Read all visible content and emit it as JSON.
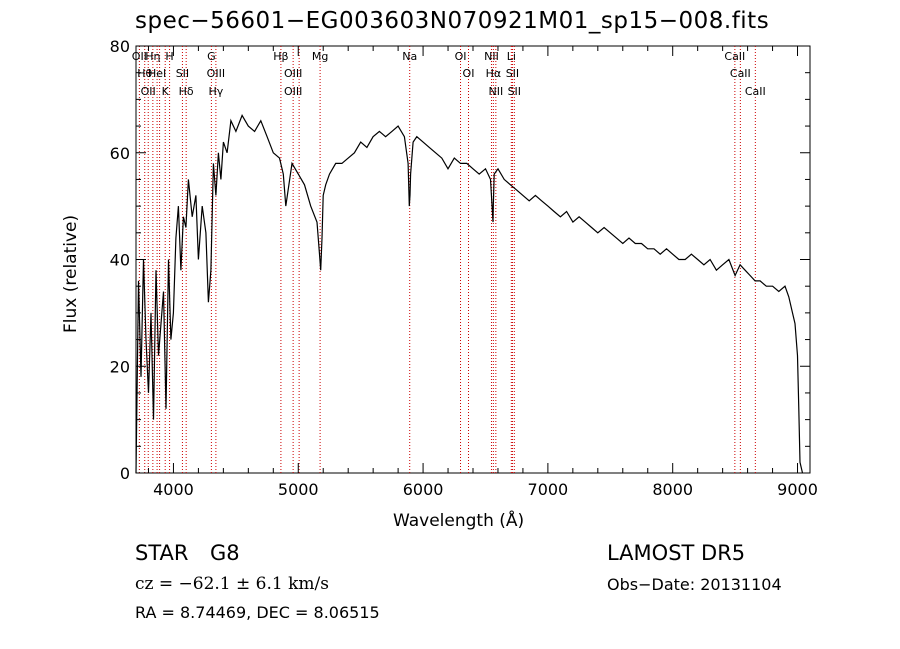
{
  "chart_data": {
    "type": "line",
    "title": "spec−56601−EG003603N070921M01_sp15−008.fits",
    "xlabel": "Wavelength (Å)",
    "ylabel": "Flux (relative)",
    "xlim": [
      3700,
      9100
    ],
    "ylim": [
      0,
      80
    ],
    "xticks": [
      4000,
      5000,
      6000,
      7000,
      8000,
      9000
    ],
    "yticks": [
      0,
      20,
      40,
      60,
      80
    ],
    "grid": false,
    "series": [
      {
        "x": [
          3700,
          3720,
          3740,
          3760,
          3780,
          3800,
          3820,
          3840,
          3860,
          3880,
          3900,
          3920,
          3940,
          3960,
          3980,
          4000,
          4020,
          4040,
          4060,
          4080,
          4100,
          4120,
          4150,
          4180,
          4200,
          4230,
          4260,
          4280,
          4300,
          4320,
          4340,
          4360,
          4380,
          4400,
          4430,
          4460,
          4500,
          4550,
          4600,
          4650,
          4700,
          4750,
          4800,
          4850,
          4880,
          4900,
          4950,
          5000,
          5050,
          5100,
          5150,
          5170,
          5180,
          5190,
          5200,
          5220,
          5250,
          5300,
          5350,
          5400,
          5450,
          5500,
          5550,
          5600,
          5650,
          5700,
          5750,
          5800,
          5850,
          5880,
          5890,
          5895,
          5900,
          5920,
          5950,
          6000,
          6050,
          6100,
          6150,
          6200,
          6250,
          6300,
          6350,
          6400,
          6450,
          6500,
          6540,
          6560,
          6563,
          6570,
          6600,
          6650,
          6700,
          6750,
          6800,
          6850,
          6900,
          6950,
          7000,
          7050,
          7100,
          7150,
          7200,
          7250,
          7300,
          7350,
          7400,
          7450,
          7500,
          7550,
          7600,
          7650,
          7700,
          7750,
          7800,
          7850,
          7900,
          7950,
          8000,
          8050,
          8100,
          8150,
          8200,
          8250,
          8300,
          8350,
          8400,
          8450,
          8500,
          8540,
          8580,
          8620,
          8660,
          8700,
          8750,
          8800,
          8850,
          8900,
          8930,
          8960,
          8980,
          9000,
          9010,
          9020,
          9040
        ],
        "y": [
          0,
          36,
          18,
          40,
          25,
          15,
          30,
          10,
          38,
          22,
          28,
          34,
          12,
          40,
          25,
          30,
          44,
          50,
          38,
          48,
          46,
          55,
          48,
          52,
          40,
          50,
          45,
          32,
          38,
          58,
          52,
          60,
          55,
          62,
          60,
          66,
          64,
          67,
          65,
          64,
          66,
          63,
          60,
          59,
          56,
          50,
          58,
          56,
          54,
          50,
          47,
          41,
          38,
          44,
          52,
          54,
          56,
          58,
          58,
          59,
          60,
          62,
          61,
          63,
          64,
          63,
          64,
          65,
          63,
          58,
          50,
          52,
          56,
          62,
          63,
          62,
          61,
          60,
          59,
          57,
          59,
          58,
          58,
          57,
          56,
          57,
          55,
          47,
          50,
          56,
          57,
          55,
          54,
          53,
          52,
          51,
          52,
          51,
          50,
          49,
          48,
          49,
          47,
          48,
          47,
          46,
          45,
          46,
          45,
          44,
          43,
          44,
          43,
          43,
          42,
          42,
          41,
          42,
          41,
          40,
          40,
          41,
          40,
          39,
          40,
          38,
          39,
          40,
          37,
          39,
          38,
          37,
          36,
          36,
          35,
          35,
          34,
          35,
          33,
          30,
          28,
          22,
          12,
          2,
          0
        ]
      }
    ],
    "lines": [
      {
        "x": 3727,
        "labels": [
          "OII"
        ]
      },
      {
        "x": 3770,
        "labels": [
          "Hθ"
        ]
      },
      {
        "x": 3798,
        "labels": [
          "OII"
        ]
      },
      {
        "x": 3835,
        "labels": [
          "Hη"
        ]
      },
      {
        "x": 3869,
        "labels": [
          "HeI"
        ]
      },
      {
        "x": 3889,
        "labels": [
          ""
        ]
      },
      {
        "x": 3934,
        "labels": [
          "K"
        ]
      },
      {
        "x": 3969,
        "labels": [
          "H"
        ]
      },
      {
        "x": 4072,
        "labels": [
          "SII"
        ]
      },
      {
        "x": 4102,
        "labels": [
          "Hδ"
        ]
      },
      {
        "x": 4304,
        "labels": [
          "G"
        ]
      },
      {
        "x": 4340,
        "labels": [
          "OIII",
          "Hγ"
        ]
      },
      {
        "x": 4861,
        "labels": [
          "Hβ"
        ]
      },
      {
        "x": 4959,
        "labels": [
          "OIII",
          "OIII"
        ]
      },
      {
        "x": 5007,
        "labels": [
          ""
        ]
      },
      {
        "x": 5175,
        "labels": [
          "Mg"
        ]
      },
      {
        "x": 5893,
        "labels": [
          "Na"
        ]
      },
      {
        "x": 6300,
        "labels": [
          "OI"
        ]
      },
      {
        "x": 6364,
        "labels": [
          "OI"
        ]
      },
      {
        "x": 6548,
        "labels": [
          "NII"
        ]
      },
      {
        "x": 6563,
        "labels": [
          "Hα"
        ]
      },
      {
        "x": 6583,
        "labels": [
          "NII"
        ]
      },
      {
        "x": 6707,
        "labels": [
          "Li"
        ]
      },
      {
        "x": 6716,
        "labels": [
          "SII"
        ]
      },
      {
        "x": 6731,
        "labels": [
          "SII"
        ]
      },
      {
        "x": 8498,
        "labels": [
          "CaII"
        ]
      },
      {
        "x": 8542,
        "labels": [
          "CaII"
        ]
      },
      {
        "x": 8662,
        "labels": [
          "CaII"
        ]
      }
    ],
    "line_color": "#cc0000"
  },
  "info": {
    "class": "STAR",
    "subclass": "G8",
    "survey": "LAMOST DR5",
    "cz": "cz = −62.1 ± 6.1 km/s",
    "obs_date": "Obs−Date: 20131104",
    "radec": "RA =   8.74469, DEC =   8.06515"
  }
}
